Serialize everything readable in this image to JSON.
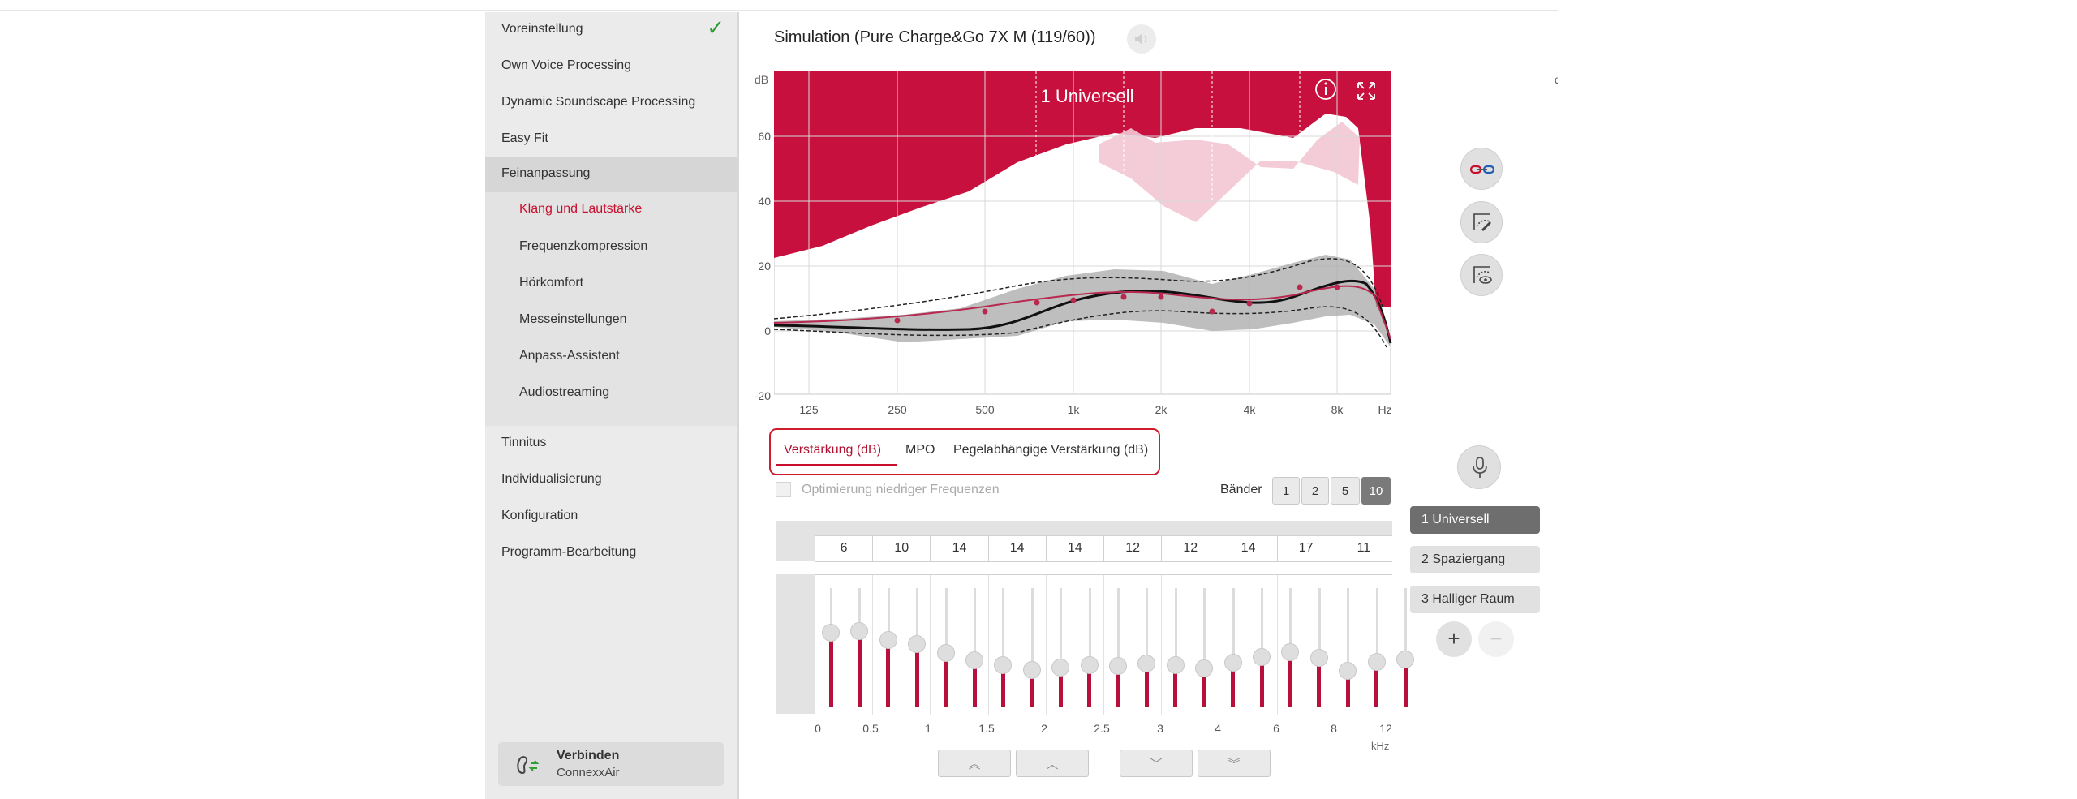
{
  "sidebar": {
    "items": [
      {
        "label": "Voreinstellung"
      },
      {
        "label": "Own Voice Processing"
      },
      {
        "label": "Dynamic Soundscape Processing"
      },
      {
        "label": "Easy Fit"
      },
      {
        "label": "Feinanpassung"
      },
      {
        "label": "Klang und Lautstärke"
      },
      {
        "label": "Frequenzkompression"
      },
      {
        "label": "Hörkomfort"
      },
      {
        "label": "Messeinstellungen"
      },
      {
        "label": "Anpass-Assistent"
      },
      {
        "label": "Audiostreaming"
      },
      {
        "label": "Tinnitus"
      },
      {
        "label": "Individualisierung"
      },
      {
        "label": "Konfiguration"
      },
      {
        "label": "Programm-Bearbeitung"
      }
    ],
    "connect": {
      "title": "Verbinden",
      "subtitle": "ConnexxAir"
    }
  },
  "header": {
    "title": "Simulation (Pure Charge&Go 7X M (119/60))"
  },
  "graph": {
    "unit_label": "dB",
    "program_title": "1 Universell",
    "y_ticks": [
      "60",
      "40",
      "20",
      "0",
      "-20"
    ],
    "x_ticks": [
      "125",
      "250",
      "500",
      "1k",
      "2k",
      "4k",
      "8k",
      "Hz"
    ],
    "fill_color": "#c8103e"
  },
  "tabs": [
    {
      "label": "Verstärkung (dB)"
    },
    {
      "label": "MPO"
    },
    {
      "label": "Pegelabhängige Verstärkung (dB)"
    }
  ],
  "options": {
    "low_freq_label": "Optimierung niedriger Frequenzen",
    "bands_label": "Bänder",
    "bands": [
      "1",
      "2",
      "5",
      "10"
    ],
    "selected_band": "10"
  },
  "gains": [
    "6",
    "10",
    "14",
    "14",
    "14",
    "12",
    "12",
    "14",
    "17",
    "11"
  ],
  "slider_levels": [
    0.62,
    0.64,
    0.56,
    0.53,
    0.45,
    0.39,
    0.35,
    0.31,
    0.33,
    0.35,
    0.34,
    0.36,
    0.35,
    0.32,
    0.37,
    0.42,
    0.46,
    0.41,
    0.3,
    0.38,
    0.4
  ],
  "freq_axis": {
    "ticks": [
      "0",
      "0.5",
      "1",
      "1.5",
      "2",
      "2.5",
      "3",
      "4",
      "6",
      "8",
      "12"
    ],
    "unit": "kHz"
  },
  "programs": [
    {
      "label": "1  Universell"
    },
    {
      "label": "2  Spaziergang"
    },
    {
      "label": "3  Halliger Raum"
    }
  ],
  "program_controls": {
    "add": "+",
    "remove": "−"
  },
  "nav_arrows": {
    "up2": "︽",
    "up": "︿",
    "down": "﹀",
    "down2": "︾"
  }
}
